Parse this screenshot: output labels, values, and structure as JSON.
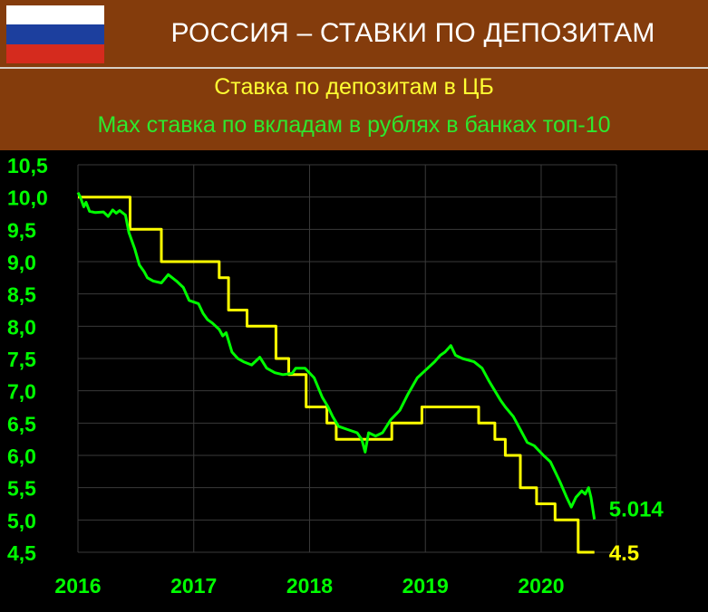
{
  "header": {
    "title": "РОССИЯ – СТАВКИ ПО ДЕПОЗИТАМ",
    "flag_colors": [
      "#ffffff",
      "#1c3f9e",
      "#d52b1e"
    ]
  },
  "legend": {
    "series1_label": "Ставка по депозитам в ЦБ",
    "series2_label": "Max ставка по вкладам в рублях в банках топ-10"
  },
  "colors": {
    "background": "#000000",
    "frame": "#843c0c",
    "cb_rate": "#ffff00",
    "bank_rate": "#00ff00",
    "grid": "#3a3a3a"
  },
  "chart_data": {
    "type": "line",
    "title": "",
    "xlabel": "",
    "ylabel": "",
    "x_ticks": [
      "2016",
      "2017",
      "2018",
      "2019",
      "2020"
    ],
    "xlim": [
      2016.0,
      2020.65
    ],
    "y_ticks": [
      "10,5",
      "10,0",
      "9,5",
      "9,0",
      "8,5",
      "8,0",
      "7,5",
      "7,0",
      "6,5",
      "6,0",
      "5,5",
      "5,0",
      "4,5"
    ],
    "ylim": [
      4.5,
      10.5
    ],
    "grid": true,
    "end_labels": {
      "bank_rate": "5.014",
      "cb_rate": "4.5"
    },
    "series": [
      {
        "key": "cb_rate",
        "type": "step",
        "points": [
          [
            2016.0,
            10.0
          ],
          [
            2016.45,
            9.5
          ],
          [
            2016.72,
            9.0
          ],
          [
            2017.22,
            8.75
          ],
          [
            2017.3,
            8.25
          ],
          [
            2017.46,
            8.0
          ],
          [
            2017.71,
            7.5
          ],
          [
            2017.82,
            7.25
          ],
          [
            2017.97,
            6.75
          ],
          [
            2018.15,
            6.5
          ],
          [
            2018.23,
            6.25
          ],
          [
            2018.71,
            6.5
          ],
          [
            2018.97,
            6.75
          ],
          [
            2019.46,
            6.5
          ],
          [
            2019.6,
            6.25
          ],
          [
            2019.69,
            6.0
          ],
          [
            2019.82,
            5.5
          ],
          [
            2019.96,
            5.25
          ],
          [
            2020.12,
            5.0
          ],
          [
            2020.32,
            4.5
          ],
          [
            2020.46,
            4.5
          ]
        ]
      },
      {
        "key": "bank_rate",
        "type": "line",
        "points": [
          [
            2016.0,
            10.07
          ],
          [
            2016.02,
            10.0
          ],
          [
            2016.05,
            9.85
          ],
          [
            2016.07,
            9.92
          ],
          [
            2016.1,
            9.78
          ],
          [
            2016.15,
            9.76
          ],
          [
            2016.22,
            9.77
          ],
          [
            2016.26,
            9.7
          ],
          [
            2016.3,
            9.8
          ],
          [
            2016.33,
            9.75
          ],
          [
            2016.36,
            9.79
          ],
          [
            2016.41,
            9.72
          ],
          [
            2016.44,
            9.45
          ],
          [
            2016.49,
            9.2
          ],
          [
            2016.53,
            8.95
          ],
          [
            2016.57,
            8.85
          ],
          [
            2016.6,
            8.75
          ],
          [
            2016.65,
            8.7
          ],
          [
            2016.72,
            8.67
          ],
          [
            2016.78,
            8.8
          ],
          [
            2016.85,
            8.7
          ],
          [
            2016.91,
            8.6
          ],
          [
            2016.96,
            8.4
          ],
          [
            2017.04,
            8.35
          ],
          [
            2017.08,
            8.2
          ],
          [
            2017.12,
            8.1
          ],
          [
            2017.16,
            8.05
          ],
          [
            2017.22,
            7.95
          ],
          [
            2017.25,
            7.85
          ],
          [
            2017.28,
            7.9
          ],
          [
            2017.33,
            7.6
          ],
          [
            2017.38,
            7.5
          ],
          [
            2017.43,
            7.45
          ],
          [
            2017.5,
            7.4
          ],
          [
            2017.57,
            7.52
          ],
          [
            2017.63,
            7.35
          ],
          [
            2017.7,
            7.28
          ],
          [
            2017.77,
            7.25
          ],
          [
            2017.85,
            7.27
          ],
          [
            2017.88,
            7.35
          ],
          [
            2017.96,
            7.35
          ],
          [
            2018.04,
            7.2
          ],
          [
            2018.11,
            6.9
          ],
          [
            2018.16,
            6.75
          ],
          [
            2018.2,
            6.6
          ],
          [
            2018.25,
            6.45
          ],
          [
            2018.33,
            6.4
          ],
          [
            2018.41,
            6.35
          ],
          [
            2018.45,
            6.25
          ],
          [
            2018.48,
            6.05
          ],
          [
            2018.51,
            6.35
          ],
          [
            2018.57,
            6.3
          ],
          [
            2018.63,
            6.35
          ],
          [
            2018.7,
            6.55
          ],
          [
            2018.78,
            6.7
          ],
          [
            2018.85,
            6.95
          ],
          [
            2018.93,
            7.2
          ],
          [
            2019.02,
            7.35
          ],
          [
            2019.08,
            7.45
          ],
          [
            2019.13,
            7.55
          ],
          [
            2019.17,
            7.6
          ],
          [
            2019.22,
            7.7
          ],
          [
            2019.26,
            7.55
          ],
          [
            2019.32,
            7.5
          ],
          [
            2019.42,
            7.45
          ],
          [
            2019.49,
            7.35
          ],
          [
            2019.55,
            7.15
          ],
          [
            2019.6,
            7.0
          ],
          [
            2019.65,
            6.85
          ],
          [
            2019.69,
            6.75
          ],
          [
            2019.76,
            6.6
          ],
          [
            2019.82,
            6.4
          ],
          [
            2019.88,
            6.2
          ],
          [
            2019.94,
            6.15
          ],
          [
            2020.02,
            6.0
          ],
          [
            2020.08,
            5.9
          ],
          [
            2020.12,
            5.75
          ],
          [
            2020.16,
            5.6
          ],
          [
            2020.22,
            5.35
          ],
          [
            2020.26,
            5.2
          ],
          [
            2020.3,
            5.35
          ],
          [
            2020.35,
            5.45
          ],
          [
            2020.38,
            5.4
          ],
          [
            2020.41,
            5.5
          ],
          [
            2020.43,
            5.35
          ],
          [
            2020.46,
            5.01
          ]
        ]
      }
    ]
  }
}
